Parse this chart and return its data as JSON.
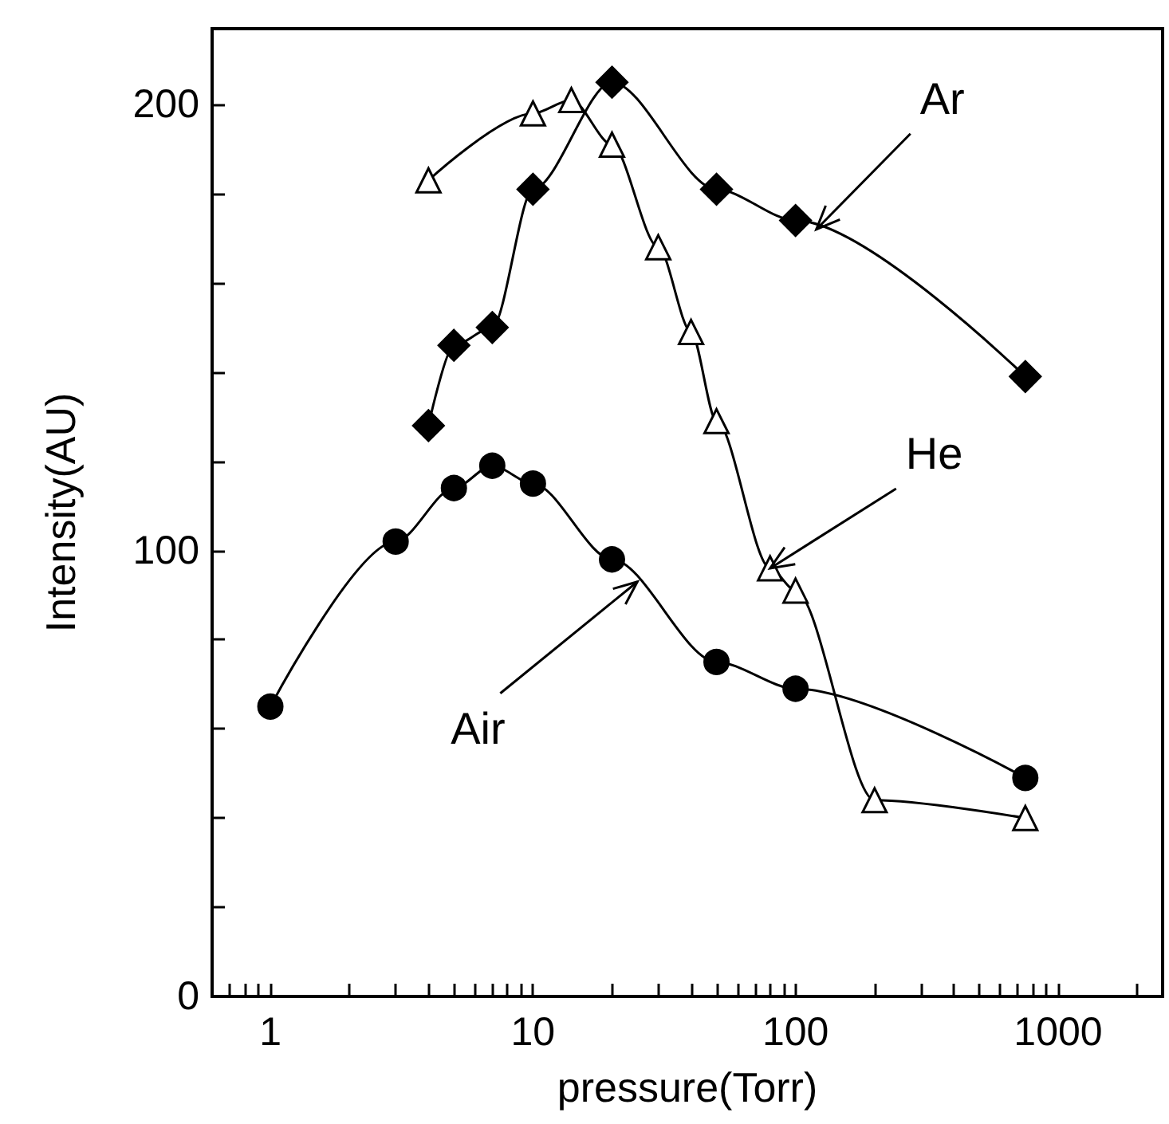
{
  "chart_data": {
    "type": "line",
    "xlabel": "pressure(Torr)",
    "ylabel": "Intensity(AU)",
    "log": "x",
    "grid": false,
    "line_style": "solid",
    "xlim": [
      0.6,
      2500
    ],
    "ylim": [
      0,
      217
    ],
    "xticks": [
      {
        "value": 0.6,
        "label": null
      },
      {
        "value": 0.7,
        "label": null
      },
      {
        "value": 0.8,
        "label": null
      },
      {
        "value": 0.9,
        "label": null
      },
      1,
      {
        "value": 2,
        "label": null
      },
      {
        "value": 3,
        "label": null
      },
      {
        "value": 4,
        "label": null
      },
      {
        "value": 5,
        "label": null
      },
      {
        "value": 6,
        "label": null
      },
      {
        "value": 7,
        "label": null
      },
      {
        "value": 8,
        "label": null
      },
      {
        "value": 9,
        "label": null
      },
      10,
      {
        "value": 20,
        "label": null
      },
      {
        "value": 30,
        "label": null
      },
      {
        "value": 40,
        "label": null
      },
      {
        "value": 50,
        "label": null
      },
      {
        "value": 60,
        "label": null
      },
      {
        "value": 70,
        "label": null
      },
      {
        "value": 80,
        "label": null
      },
      {
        "value": 90,
        "label": null
      },
      100,
      {
        "value": 200,
        "label": null
      },
      {
        "value": 300,
        "label": null
      },
      {
        "value": 400,
        "label": null
      },
      {
        "value": 500,
        "label": null
      },
      {
        "value": 600,
        "label": null
      },
      {
        "value": 700,
        "label": null
      },
      {
        "value": 800,
        "label": null
      },
      {
        "value": 900,
        "label": null
      },
      1000,
      {
        "value": 2000,
        "label": null
      }
    ],
    "yticks": [
      0,
      {
        "value": 20,
        "label": null
      },
      {
        "value": 40,
        "label": null
      },
      {
        "value": 60,
        "label": null
      },
      {
        "value": 80,
        "label": null
      },
      100,
      {
        "value": 120,
        "label": null
      },
      {
        "value": 140,
        "label": null
      },
      {
        "value": 160,
        "label": null
      },
      {
        "value": 180,
        "label": null
      },
      200
    ],
    "series": [
      {
        "color": "#000000",
        "marker": "circle",
        "x": [
          1,
          3,
          5,
          7,
          10,
          20,
          50,
          100,
          750
        ],
        "values": [
          65,
          102,
          114,
          119,
          115,
          98,
          75,
          69,
          49
        ]
      },
      {
        "color": "#000000",
        "marker": "triangle",
        "x": [
          4,
          10,
          14,
          20,
          30,
          40,
          50,
          80,
          100,
          200,
          750
        ],
        "values": [
          183,
          198,
          201,
          191,
          168,
          149,
          129,
          96,
          91,
          44,
          40
        ]
      },
      {
        "color": "#000000",
        "marker": "diamond",
        "x": [
          4,
          5,
          7,
          10,
          20,
          50,
          100,
          750
        ],
        "values": [
          128,
          146,
          150,
          181,
          205,
          181,
          174,
          139
        ]
      }
    ],
    "annotations": [
      {
        "text": "Ar",
        "x": 120,
        "y": 172
      },
      {
        "text": "He",
        "x": 80,
        "y": 96
      },
      {
        "text": "Air",
        "x": 25,
        "y": 93
      }
    ]
  }
}
